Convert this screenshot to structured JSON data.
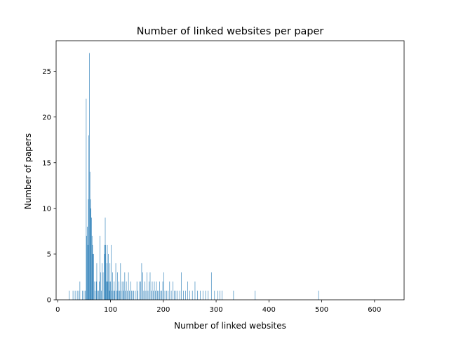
{
  "chart_data": {
    "type": "bar",
    "title": "Number of linked websites per paper",
    "xlabel": "Number of linked websites",
    "ylabel": "Number of papers",
    "xlim": [
      -3,
      656
    ],
    "ylim": [
      0,
      28.35
    ],
    "xticks": [
      0,
      100,
      200,
      300,
      400,
      500,
      600
    ],
    "yticks": [
      0,
      5,
      10,
      15,
      20,
      25
    ],
    "grid": false,
    "bar_color": "#1f77b4",
    "bars": [
      {
        "x": 22,
        "y": 1
      },
      {
        "x": 29,
        "y": 1
      },
      {
        "x": 33,
        "y": 1
      },
      {
        "x": 37,
        "y": 1
      },
      {
        "x": 40,
        "y": 1
      },
      {
        "x": 42,
        "y": 2
      },
      {
        "x": 47,
        "y": 1
      },
      {
        "x": 50,
        "y": 1
      },
      {
        "x": 52,
        "y": 1
      },
      {
        "x": 54,
        "y": 22
      },
      {
        "x": 55,
        "y": 7
      },
      {
        "x": 56,
        "y": 8
      },
      {
        "x": 57,
        "y": 6
      },
      {
        "x": 58,
        "y": 11
      },
      {
        "x": 59,
        "y": 18
      },
      {
        "x": 60,
        "y": 27
      },
      {
        "x": 61,
        "y": 14
      },
      {
        "x": 62,
        "y": 11
      },
      {
        "x": 63,
        "y": 10
      },
      {
        "x": 64,
        "y": 9
      },
      {
        "x": 65,
        "y": 7
      },
      {
        "x": 66,
        "y": 6
      },
      {
        "x": 67,
        "y": 5
      },
      {
        "x": 68,
        "y": 5
      },
      {
        "x": 70,
        "y": 2
      },
      {
        "x": 71,
        "y": 1
      },
      {
        "x": 73,
        "y": 2
      },
      {
        "x": 74,
        "y": 4
      },
      {
        "x": 76,
        "y": 1
      },
      {
        "x": 77,
        "y": 1
      },
      {
        "x": 79,
        "y": 2
      },
      {
        "x": 80,
        "y": 7
      },
      {
        "x": 81,
        "y": 3
      },
      {
        "x": 83,
        "y": 1
      },
      {
        "x": 84,
        "y": 4
      },
      {
        "x": 86,
        "y": 3
      },
      {
        "x": 88,
        "y": 6
      },
      {
        "x": 89,
        "y": 5
      },
      {
        "x": 90,
        "y": 9
      },
      {
        "x": 91,
        "y": 6
      },
      {
        "x": 92,
        "y": 2
      },
      {
        "x": 93,
        "y": 4
      },
      {
        "x": 94,
        "y": 6
      },
      {
        "x": 95,
        "y": 2
      },
      {
        "x": 96,
        "y": 5
      },
      {
        "x": 97,
        "y": 2
      },
      {
        "x": 98,
        "y": 1
      },
      {
        "x": 99,
        "y": 4
      },
      {
        "x": 100,
        "y": 2
      },
      {
        "x": 101,
        "y": 6
      },
      {
        "x": 103,
        "y": 1
      },
      {
        "x": 104,
        "y": 3
      },
      {
        "x": 106,
        "y": 1
      },
      {
        "x": 107,
        "y": 2
      },
      {
        "x": 108,
        "y": 1
      },
      {
        "x": 110,
        "y": 4
      },
      {
        "x": 111,
        "y": 1
      },
      {
        "x": 113,
        "y": 3
      },
      {
        "x": 114,
        "y": 1
      },
      {
        "x": 116,
        "y": 2
      },
      {
        "x": 117,
        "y": 1
      },
      {
        "x": 119,
        "y": 4
      },
      {
        "x": 120,
        "y": 1
      },
      {
        "x": 122,
        "y": 2
      },
      {
        "x": 124,
        "y": 1
      },
      {
        "x": 125,
        "y": 2
      },
      {
        "x": 127,
        "y": 3
      },
      {
        "x": 128,
        "y": 1
      },
      {
        "x": 130,
        "y": 2
      },
      {
        "x": 132,
        "y": 1
      },
      {
        "x": 134,
        "y": 3
      },
      {
        "x": 136,
        "y": 1
      },
      {
        "x": 138,
        "y": 2
      },
      {
        "x": 140,
        "y": 1
      },
      {
        "x": 142,
        "y": 1
      },
      {
        "x": 144,
        "y": 1
      },
      {
        "x": 147,
        "y": 1
      },
      {
        "x": 150,
        "y": 2
      },
      {
        "x": 152,
        "y": 1
      },
      {
        "x": 155,
        "y": 2
      },
      {
        "x": 157,
        "y": 2
      },
      {
        "x": 159,
        "y": 4
      },
      {
        "x": 161,
        "y": 3
      },
      {
        "x": 163,
        "y": 1
      },
      {
        "x": 165,
        "y": 2
      },
      {
        "x": 167,
        "y": 1
      },
      {
        "x": 169,
        "y": 3
      },
      {
        "x": 171,
        "y": 1
      },
      {
        "x": 173,
        "y": 2
      },
      {
        "x": 175,
        "y": 3
      },
      {
        "x": 177,
        "y": 1
      },
      {
        "x": 179,
        "y": 2
      },
      {
        "x": 181,
        "y": 1
      },
      {
        "x": 183,
        "y": 2
      },
      {
        "x": 185,
        "y": 1
      },
      {
        "x": 187,
        "y": 2
      },
      {
        "x": 189,
        "y": 1
      },
      {
        "x": 191,
        "y": 1
      },
      {
        "x": 193,
        "y": 2
      },
      {
        "x": 195,
        "y": 1
      },
      {
        "x": 197,
        "y": 1
      },
      {
        "x": 199,
        "y": 2
      },
      {
        "x": 201,
        "y": 3
      },
      {
        "x": 203,
        "y": 1
      },
      {
        "x": 206,
        "y": 1
      },
      {
        "x": 209,
        "y": 1
      },
      {
        "x": 212,
        "y": 2
      },
      {
        "x": 215,
        "y": 1
      },
      {
        "x": 218,
        "y": 2
      },
      {
        "x": 221,
        "y": 1
      },
      {
        "x": 224,
        "y": 1
      },
      {
        "x": 227,
        "y": 1
      },
      {
        "x": 231,
        "y": 1
      },
      {
        "x": 234,
        "y": 3
      },
      {
        "x": 238,
        "y": 1
      },
      {
        "x": 242,
        "y": 1
      },
      {
        "x": 246,
        "y": 2
      },
      {
        "x": 250,
        "y": 1
      },
      {
        "x": 255,
        "y": 1
      },
      {
        "x": 260,
        "y": 2
      },
      {
        "x": 265,
        "y": 1
      },
      {
        "x": 270,
        "y": 1
      },
      {
        "x": 275,
        "y": 1
      },
      {
        "x": 280,
        "y": 1
      },
      {
        "x": 285,
        "y": 1
      },
      {
        "x": 291,
        "y": 3
      },
      {
        "x": 297,
        "y": 1
      },
      {
        "x": 303,
        "y": 1
      },
      {
        "x": 307,
        "y": 1
      },
      {
        "x": 311,
        "y": 1
      },
      {
        "x": 333,
        "y": 1
      },
      {
        "x": 374,
        "y": 1
      },
      {
        "x": 494,
        "y": 1
      }
    ]
  }
}
